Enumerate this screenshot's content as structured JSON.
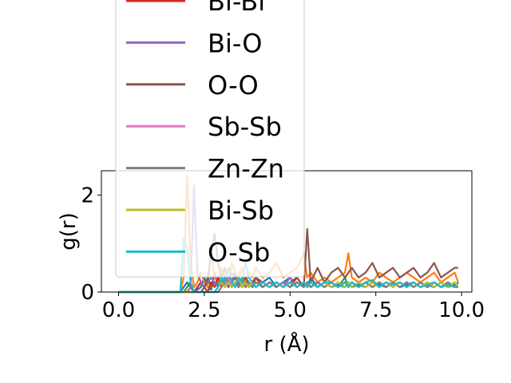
{
  "chart_data": {
    "type": "line",
    "title": "",
    "xlabel": "r (Å)",
    "ylabel": "g(r)",
    "xlim": [
      -0.5,
      10.3
    ],
    "ylim": [
      0,
      2.5
    ],
    "xticks": [
      "0.0",
      "2.5",
      "5.0",
      "7.5",
      "10.0"
    ],
    "xtick_values": [
      0,
      2.5,
      5.0,
      7.5,
      10.0
    ],
    "yticks": [
      "0",
      "2"
    ],
    "ytick_values": [
      0,
      2
    ],
    "grid": false,
    "legend_position": "upper-center, overflowing the plot top",
    "x": [
      0.0,
      1.7,
      1.8,
      1.9,
      2.0,
      2.1,
      2.2,
      2.3,
      2.4,
      2.5,
      2.6,
      2.7,
      2.8,
      2.9,
      3.0,
      3.1,
      3.2,
      3.3,
      3.4,
      3.5,
      3.6,
      3.7,
      3.8,
      3.9,
      4.0,
      4.2,
      4.4,
      4.6,
      4.8,
      5.0,
      5.2,
      5.4,
      5.5,
      5.6,
      5.8,
      6.0,
      6.2,
      6.4,
      6.6,
      6.7,
      6.8,
      7.0,
      7.2,
      7.4,
      7.6,
      7.8,
      8.0,
      8.2,
      8.4,
      8.6,
      8.8,
      9.0,
      9.2,
      9.4,
      9.6,
      9.8,
      9.9
    ],
    "series": [
      {
        "color": "#1f77b4",
        "values": [
          0,
          0,
          0,
          0.1,
          0.2,
          0.1,
          0,
          0.05,
          0.1,
          0.3,
          0.1,
          0.05,
          0.4,
          0.1,
          0.2,
          0.3,
          0.1,
          0.2,
          0.4,
          0.1,
          0.2,
          0.3,
          0.1,
          0.2,
          0.1,
          0.2,
          0.3,
          0.1,
          0.2,
          0.3,
          0.1,
          0.2,
          0.1,
          0.3,
          0.1,
          0.2,
          0.1,
          0.15,
          0.1,
          0.2,
          0.1,
          0.15,
          0.1,
          0.2,
          0.15,
          0.1,
          0.2,
          0.1,
          0.15,
          0.2,
          0.1,
          0.15,
          0.1,
          0.2,
          0.1,
          0.15,
          0.1
        ]
      },
      {
        "color": "#ff7f0e",
        "values": [
          0,
          0,
          0,
          0.3,
          2.4,
          0.6,
          0.1,
          0.2,
          0.4,
          0.2,
          0.1,
          0.9,
          0.3,
          0.2,
          0.5,
          0.3,
          0.2,
          0.6,
          0.4,
          0.3,
          0.5,
          0.2,
          0.4,
          0.3,
          0.5,
          0.3,
          0.4,
          0.6,
          0.3,
          0.4,
          0.5,
          0.8,
          0.3,
          0.4,
          0.2,
          0.3,
          0.2,
          0.3,
          0.4,
          0.8,
          0.3,
          0.2,
          0.3,
          0.2,
          0.4,
          0.3,
          0.2,
          0.3,
          0.4,
          0.3,
          0.2,
          0.3,
          0.4,
          0.2,
          0.3,
          0.4,
          0.2
        ]
      },
      {
        "color": "#2ca02c",
        "values": [
          0,
          0,
          0,
          0,
          0.1,
          0.2,
          0,
          0.1,
          0.2,
          0.1,
          0.3,
          0.1,
          0.2,
          0.1,
          0.3,
          0.2,
          0.1,
          0.2,
          0.3,
          0.1,
          0.2,
          0.1,
          0.2,
          0.1,
          0.2,
          0.1,
          0.2,
          0.1,
          0.2,
          0.1,
          0.2,
          0.1,
          0.2,
          0.1,
          0.2,
          0.1,
          0.2,
          0.1,
          0.3,
          0.1,
          0.2,
          0.1,
          0.2,
          0.1,
          0.2,
          0.1,
          0.2,
          0.1,
          0.2,
          0.1,
          0.2,
          0.1,
          0.2,
          0.1,
          0.2,
          0.1,
          0.2
        ]
      },
      {
        "name": "Bi-Bi",
        "color": "#d62728",
        "values": [
          0,
          0,
          0,
          0,
          0,
          0,
          0,
          0.1,
          0.2,
          0.1,
          0,
          0.2,
          0.1,
          0.3,
          0.1,
          0.2,
          0.1,
          0.2,
          0.1,
          0.3,
          0.1,
          0.2,
          0.1,
          0.2,
          0.3,
          0.1,
          0.2,
          0.1,
          0.2,
          0.1,
          0.3,
          0.1,
          0.2,
          0.1,
          0.2,
          0.1,
          0.2,
          0.1,
          0.2,
          0.1,
          0.2,
          0.1,
          0.2,
          0.1,
          0.2,
          0.1,
          0.2,
          0.1,
          0.2,
          0.1,
          0.2,
          0.1,
          0.2,
          0.1,
          0.2,
          0.1,
          0.2
        ]
      },
      {
        "name": "Bi-O",
        "color": "#9467bd",
        "values": [
          0,
          0,
          0,
          0,
          0,
          0.1,
          2.2,
          0.4,
          0.2,
          0.1,
          0.2,
          0.3,
          0.2,
          0.1,
          0.3,
          0.2,
          0.1,
          0.2,
          0.3,
          0.2,
          0.1,
          0.2,
          0.1,
          0.2,
          0.1,
          0.2,
          0.1,
          0.2,
          0.1,
          0.3,
          0.1,
          0.2,
          0.1,
          0.2,
          0.1,
          0.2,
          0.1,
          0.2,
          0.1,
          0.2,
          0.1,
          0.2,
          0.1,
          0.2,
          0.1,
          0.2,
          0.1,
          0.2,
          0.1,
          0.2,
          0.1,
          0.2,
          0.1,
          0.2,
          0.1,
          0.2,
          0.1
        ]
      },
      {
        "name": "O-O",
        "color": "#8c564b",
        "values": [
          0,
          0,
          0,
          0,
          0,
          0,
          0,
          0,
          0,
          0.1,
          0.3,
          0.8,
          1.2,
          0.6,
          0.3,
          0.5,
          0.2,
          0.4,
          0.3,
          0.1,
          0.2,
          0.3,
          0.2,
          0.1,
          0.3,
          0.2,
          0.1,
          0.2,
          0.1,
          0.2,
          0.3,
          0.1,
          1.3,
          0.2,
          0.5,
          0.2,
          0.4,
          0.5,
          0.3,
          0.4,
          0.5,
          0.3,
          0.4,
          0.6,
          0.3,
          0.4,
          0.5,
          0.3,
          0.4,
          0.5,
          0.3,
          0.4,
          0.6,
          0.3,
          0.4,
          0.5,
          0.5
        ]
      },
      {
        "name": "Sb-Sb",
        "color": "#e377c2",
        "values": [
          0,
          0,
          0,
          0,
          0,
          0,
          0,
          0,
          0,
          0,
          0,
          0,
          0,
          0.1,
          0.2,
          0.1,
          0.3,
          0.1,
          0.2,
          0.1,
          0.2,
          0.1,
          0.2,
          0.1,
          0.2,
          0.1,
          0.2,
          0.1,
          0.2,
          0.1,
          0.2,
          0.1,
          0.2,
          0.1,
          0.2,
          0.1,
          0.2,
          0.1,
          0.2,
          0.1,
          0.2,
          0.1,
          0.2,
          0.1,
          0.2,
          0.1,
          0.2,
          0.1,
          0.2,
          0.1,
          0.2,
          0.1,
          0.2,
          0.1,
          0.2,
          0.1,
          0.2
        ]
      },
      {
        "name": "Zn-Zn",
        "color": "#7f7f7f",
        "values": [
          0,
          0,
          0,
          0,
          0,
          0,
          0,
          0,
          0,
          0,
          0,
          0,
          0,
          0,
          0.1,
          0.3,
          0.2,
          0.1,
          0.2,
          0.1,
          0.3,
          0.1,
          0.2,
          0.1,
          0.2,
          0.1,
          0.2,
          0.1,
          0.2,
          0.1,
          0.2,
          0.1,
          0.2,
          0.1,
          0.2,
          0.1,
          0.2,
          0.1,
          0.2,
          0.1,
          0.2,
          0.1,
          0.2,
          0.1,
          0.2,
          0.1,
          0.2,
          0.1,
          0.2,
          0.1,
          0.2,
          0.1,
          0.2,
          0.1,
          0.2,
          0.1,
          0.2
        ]
      },
      {
        "name": "Bi-Sb",
        "color": "#bcbd22",
        "values": [
          0,
          0,
          0,
          0,
          0,
          0,
          0,
          0,
          0,
          0,
          0,
          0,
          0,
          0.1,
          0.2,
          0.1,
          0.2,
          0.1,
          0.2,
          0.3,
          0.1,
          0.2,
          0.1,
          0.2,
          0.1,
          0.2,
          0.1,
          0.2,
          0.1,
          0.2,
          0.1,
          0.2,
          0.1,
          0.2,
          0.1,
          0.2,
          0.1,
          0.2,
          0.1,
          0.2,
          0.1,
          0.2,
          0.1,
          0.2,
          0.1,
          0.2,
          0.1,
          0.2,
          0.1,
          0.2,
          0.1,
          0.2,
          0.1,
          0.2,
          0.1,
          0.2,
          0.1
        ]
      },
      {
        "name": "O-Sb",
        "color": "#17becf",
        "values": [
          0,
          0,
          0,
          1.1,
          0.9,
          0.2,
          0,
          0,
          0,
          0,
          0,
          0,
          0,
          0.1,
          0.3,
          0.2,
          0.5,
          0.2,
          0.1,
          0.3,
          0.2,
          0.6,
          0.3,
          0.2,
          0.1,
          0.2,
          0.1,
          0.2,
          0.1,
          0.2,
          0.1,
          0.2,
          0.1,
          0.2,
          0.1,
          0.2,
          0.2,
          0.1,
          0.2,
          0.1,
          0.2,
          0.1,
          0.2,
          0.25,
          0.1,
          0.2,
          0.15,
          0.2,
          0.1,
          0.2,
          0.1,
          0.15,
          0.2,
          0.1,
          0.15,
          0.1,
          0.1
        ]
      }
    ],
    "legend": [
      {
        "label": "Bi-Bi",
        "color": "#d62728"
      },
      {
        "label": "Bi-O",
        "color": "#9467bd"
      },
      {
        "label": "O-O",
        "color": "#8c564b"
      },
      {
        "label": "Sb-Sb",
        "color": "#e377c2"
      },
      {
        "label": "Zn-Zn",
        "color": "#7f7f7f"
      },
      {
        "label": "Bi-Sb",
        "color": "#bcbd22"
      },
      {
        "label": "O-Sb",
        "color": "#17becf"
      }
    ]
  }
}
